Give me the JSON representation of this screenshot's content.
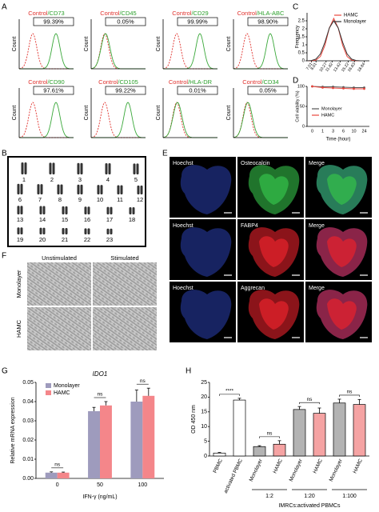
{
  "panel_labels": [
    "A",
    "B",
    "C",
    "D",
    "E",
    "F",
    "G",
    "H"
  ],
  "flow": {
    "control_label": "Control",
    "separator": "/",
    "count_label": "Count",
    "markers": [
      {
        "name": "CD73",
        "percent": "99.39%",
        "positive": true
      },
      {
        "name": "CD45",
        "percent": "0.05%",
        "positive": false
      },
      {
        "name": "CD29",
        "percent": "99.99%",
        "positive": true
      },
      {
        "name": "HLA-ABC",
        "percent": "98.90%",
        "positive": true
      },
      {
        "name": "CD90",
        "percent": "97.61%",
        "positive": true
      },
      {
        "name": "CD105",
        "percent": "99.22%",
        "positive": true
      },
      {
        "name": "HLA-DR",
        "percent": "0.01%",
        "positive": false
      },
      {
        "name": "CD34",
        "percent": "0.05%",
        "positive": false
      }
    ]
  },
  "karyotype": {
    "labels": [
      "1",
      "2",
      "3",
      "4",
      "5",
      "6",
      "7",
      "8",
      "9",
      "10",
      "11",
      "12",
      "13",
      "14",
      "15",
      "16",
      "17",
      "18",
      "19",
      "20",
      "21",
      "22",
      "23"
    ]
  },
  "staining": {
    "rows": [
      [
        "Hoechst",
        "Osteocalcin",
        "Merge"
      ],
      [
        "Hoechst",
        "FABP4",
        "Merge"
      ],
      [
        "Hoechst",
        "Aggrecan",
        "Merge"
      ]
    ]
  },
  "morphology": {
    "columns": [
      "Unstimulated",
      "Stimulated"
    ],
    "rows": [
      "Monolayer",
      "HAMC"
    ]
  },
  "chart_data": [
    {
      "type": "line",
      "ylabel": "Frequency",
      "x": [
        6,
        7,
        8,
        9,
        10,
        11,
        12,
        13,
        14,
        15,
        16,
        17,
        18,
        19,
        20
      ],
      "xlim": [
        6,
        20
      ],
      "xticks": [
        7.01,
        8.01,
        10.27,
        11.62,
        13.42,
        15.22,
        16.63,
        18.84
      ],
      "ylim": [
        0,
        3
      ],
      "yticks": [
        0,
        0.5,
        1,
        1.5,
        2,
        2.5
      ],
      "legend": "upper right",
      "series": [
        {
          "name": "HAMC",
          "color": "#e8453c",
          "values": [
            0,
            0.005,
            0.045,
            0.27,
            0.96,
            2.05,
            2.65,
            2.05,
            0.96,
            0.27,
            0.045,
            0.005,
            0,
            0,
            0
          ]
        },
        {
          "name": "Monolayer",
          "color": "#333333",
          "values": [
            0.002,
            0.02,
            0.11,
            0.43,
            1.15,
            2.05,
            2.5,
            2.05,
            1.15,
            0.43,
            0.11,
            0.02,
            0.002,
            0,
            0
          ]
        }
      ]
    },
    {
      "type": "line",
      "ylabel": "Cell viability (%)",
      "xlabel": "Time (hour)",
      "categories": [
        "0",
        "1",
        "3",
        "6",
        "10",
        "24"
      ],
      "ylim": [
        0,
        100
      ],
      "yticks": [
        0,
        50,
        100
      ],
      "legend": "lower left",
      "series": [
        {
          "name": "Monolayer",
          "color": "#555555",
          "values": [
            100,
            99,
            99,
            98,
            97,
            97
          ]
        },
        {
          "name": "HAMC",
          "color": "#e8453c",
          "values": [
            100,
            97,
            96,
            95,
            94,
            94
          ]
        }
      ]
    },
    {
      "type": "bar",
      "title": "IDO1",
      "ylabel": "Relative mRNA expression",
      "xlabel": "IFN-γ (ng/mL)",
      "categories": [
        "0",
        "50",
        "100"
      ],
      "ylim": [
        0,
        0.05
      ],
      "yticks": [
        {
          "value": 0,
          "label": "0.00"
        },
        {
          "value": 0.01,
          "label": "0.01"
        },
        {
          "value": 0.02,
          "label": "0.02"
        },
        {
          "value": 0.03,
          "label": "0.03"
        },
        {
          "value": 0.04,
          "label": "0.04"
        },
        {
          "value": 0.05,
          "label": "0.05"
        }
      ],
      "legend": "upper left",
      "series": [
        {
          "name": "Monolayer",
          "color": "#9e9bbd",
          "values": [
            0.003,
            0.035,
            0.04
          ],
          "errors": [
            0.0004,
            0.002,
            0.006
          ]
        },
        {
          "name": "HAMC",
          "color": "#f4868a",
          "values": [
            0.003,
            0.038,
            0.043
          ],
          "errors": [
            0.0003,
            0.002,
            0.004
          ]
        }
      ],
      "significance": [
        "ns",
        "ns",
        "ns"
      ]
    },
    {
      "type": "bar",
      "ylabel": "OD 450 nm",
      "categories": [
        "PBMC",
        "activated PBMC",
        "Monolayer",
        "HAMC",
        "Monolayer",
        "HAMC",
        "Monolayer",
        "HAMC"
      ],
      "values": [
        1,
        19,
        3.2,
        4,
        15.8,
        14.5,
        18,
        17.5
      ],
      "errors": [
        0.2,
        0.6,
        0.3,
        1.2,
        1,
        1.8,
        1.3,
        1.7
      ],
      "colors": [
        "#ffffff",
        "#ffffff",
        "#b3b3b3",
        "#f5a3a3",
        "#b3b3b3",
        "#f5a3a3",
        "#b3b3b3",
        "#f5a3a3"
      ],
      "ylim": [
        0,
        25
      ],
      "yticks": [
        0,
        5,
        10,
        15,
        20,
        25
      ],
      "brackets": [
        {
          "label": "****",
          "from": 0,
          "to": 1
        },
        {
          "label": "ns",
          "from": 2,
          "to": 3
        },
        {
          "label": "ns",
          "from": 4,
          "to": 5
        },
        {
          "label": "ns",
          "from": 6,
          "to": 7
        }
      ],
      "groups": [
        {
          "label": "1:2"
        },
        {
          "label": "1:20"
        },
        {
          "label": "1:100"
        }
      ],
      "group_title": "IMRCs:activated PBMCs"
    }
  ]
}
